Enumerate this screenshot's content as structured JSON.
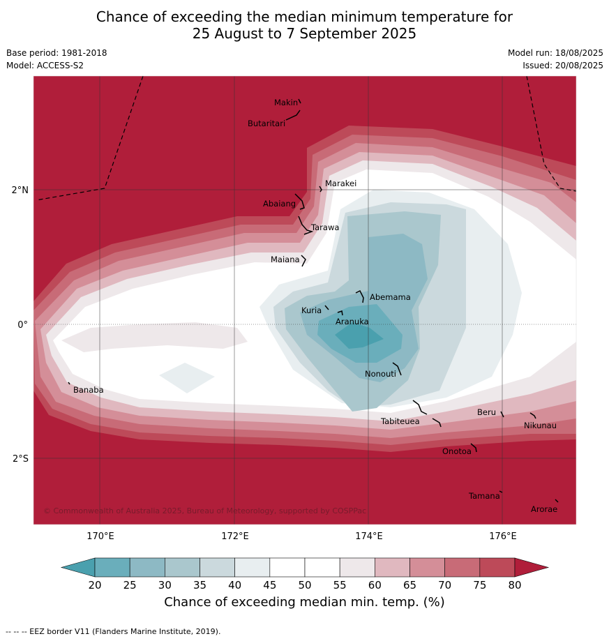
{
  "header": {
    "title_line1": "Chance of exceeding the median minimum temperature for",
    "title_line2": "25 August to 7 September 2025",
    "base_period": "Base period: 1981-2018",
    "model": "Model: ACCESS-S2",
    "model_run": "Model run: 18/08/2025",
    "issued": "Issued: 20/08/2025"
  },
  "map": {
    "lon_ticks": [
      "170°E",
      "172°E",
      "174°E",
      "176°E"
    ],
    "lat_ticks": [
      "2°N",
      "0°",
      "2°S"
    ],
    "islands": [
      "Makin",
      "Butaritari",
      "Marakei",
      "Abaiang",
      "Tarawa",
      "Maiana",
      "Abemama",
      "Kuria",
      "Aranuka",
      "Nonouti",
      "Banaba",
      "Beru",
      "Nikunau",
      "Tabiteuea",
      "Onotoa",
      "Tamana",
      "Arorae"
    ],
    "copyright": "© Commonwealth of Australia 2025, Bureau of Meteorology, supported by COSPPac"
  },
  "colorbar": {
    "ticks": [
      "20",
      "25",
      "30",
      "35",
      "40",
      "45",
      "50",
      "55",
      "60",
      "65",
      "70",
      "75",
      "80"
    ],
    "colors": [
      "#4aa0ae",
      "#6aaebb",
      "#8db9c4",
      "#aac7cd",
      "#cbd9dd",
      "#e8eef0",
      "#ffffff",
      "#ffffff",
      "#eee8ea",
      "#e0b8bf",
      "#d48e98",
      "#c86b77",
      "#bd4a59",
      "#b01e3a"
    ],
    "label": "Chance of exceeding median min. temp. (%)"
  },
  "footer": "--  --  -- EEZ border V11 (Flanders Marine Institute, 2019)."
}
